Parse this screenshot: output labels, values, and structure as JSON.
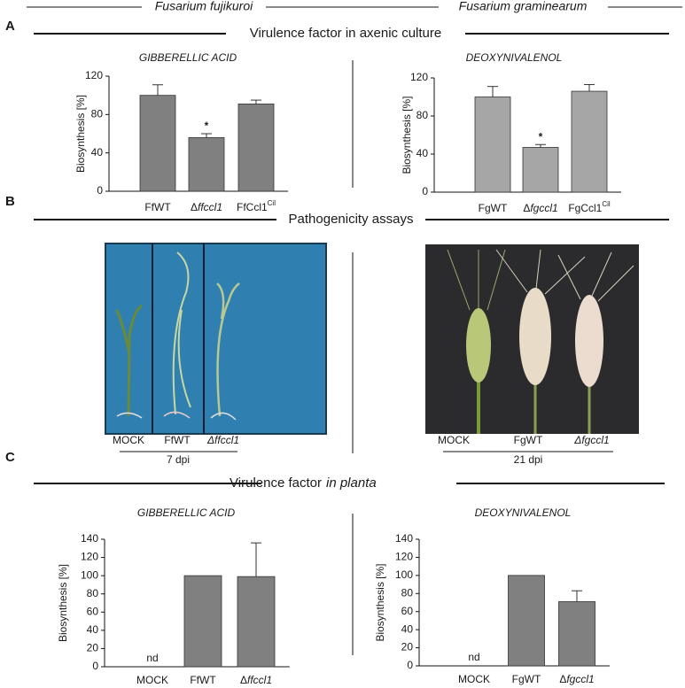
{
  "header": {
    "left": "Fusarium fujikuroi",
    "right": "Fusarium graminearum"
  },
  "panels": [
    {
      "letter": "A",
      "title": "Virulence factor in axenic culture"
    },
    {
      "letter": "B",
      "title": "Pathogenicity assays"
    },
    {
      "letter": "C",
      "title": "Virulence factor",
      "title_italic": "in planta"
    }
  ],
  "photos": [
    {
      "labels": [
        "MOCK",
        "FfWT",
        "Δffccl1"
      ],
      "time": "7 dpi"
    },
    {
      "labels": [
        "MOCK",
        "FgWT",
        "Δfgccl1"
      ],
      "time": "21 dpi"
    }
  ],
  "chart_data": [
    {
      "type": "bar",
      "title": "GIBBERELLIC ACID",
      "y_label": "Biosynthesis [%]",
      "categories": [
        "FfWT",
        "Δffccl1",
        "FfCcl1Cil"
      ],
      "values": [
        100,
        56,
        91
      ],
      "errors": [
        11,
        4,
        4
      ],
      "color": "#808080",
      "ylim": [
        0,
        120
      ],
      "yticks": [
        0,
        40,
        80,
        120
      ],
      "annotations": [
        {
          "text": "*",
          "category": 1
        }
      ]
    },
    {
      "type": "bar",
      "title": "DEOXYNIVALENOL",
      "y_label": "Biosynthesis [%]",
      "categories": [
        "FgWT",
        "Δfgccl1",
        "FgCcl1Cil"
      ],
      "values": [
        100,
        47,
        106
      ],
      "errors": [
        11,
        3,
        7
      ],
      "color": "#a6a6a6",
      "ylim": [
        0,
        120
      ],
      "yticks": [
        0,
        40,
        80,
        120
      ],
      "annotations": [
        {
          "text": "*",
          "category": 1
        }
      ]
    },
    {
      "type": "bar",
      "title": "GIBBERELLIC ACID",
      "y_label": "Biosynthesis [%]",
      "categories": [
        "MOCK",
        "FfWT",
        "Δffccl1"
      ],
      "values": [
        null,
        100,
        99
      ],
      "value_labels": [
        "nd",
        null,
        null
      ],
      "errors": [
        null,
        null,
        37
      ],
      "color": "#808080",
      "ylim": [
        0,
        140
      ],
      "yticks": [
        0,
        20,
        40,
        60,
        80,
        100,
        120,
        140
      ]
    },
    {
      "type": "bar",
      "title": "DEOXYNIVALENOL",
      "y_label": "Biosynthesis [%]",
      "categories": [
        "MOCK",
        "FgWT",
        "Δfgccl1"
      ],
      "values": [
        null,
        100,
        71
      ],
      "value_labels": [
        "nd",
        null,
        null
      ],
      "errors": [
        null,
        null,
        12
      ],
      "color": "#808080",
      "ylim": [
        0,
        140
      ],
      "yticks": [
        0,
        20,
        40,
        60,
        80,
        100,
        120,
        140
      ]
    }
  ]
}
